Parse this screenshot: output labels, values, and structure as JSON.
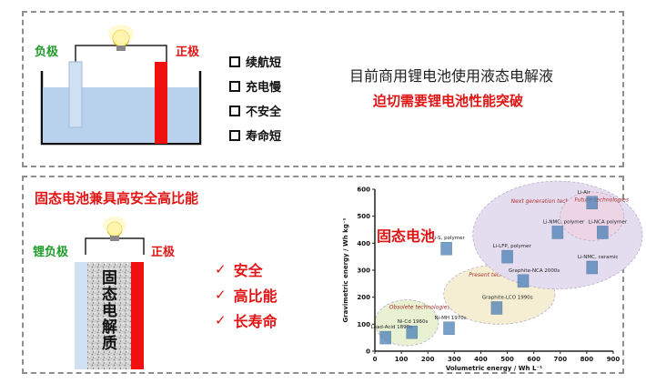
{
  "top_panel": {
    "negative_label": "负极",
    "positive_label": "正极",
    "issues": [
      "续航短",
      "充电慢",
      "不安全",
      "寿命短"
    ],
    "statement": "目前商用锂电池使用液态电解液",
    "conclusion": "迫切需要锂电池性能突破"
  },
  "bottom_panel": {
    "headline": "固态电池兼具高安全高比能",
    "negative_label": "锂负极",
    "positive_label": "正极",
    "electrolyte_label": "固态电解质",
    "benefits": [
      "安全",
      "高比能",
      "长寿命"
    ],
    "benefit_mark": "✓"
  },
  "chart_data": {
    "type": "scatter",
    "title": "",
    "overlay_label": "固态电池",
    "xlabel": "Volumetric energy / Wh L⁻¹",
    "ylabel": "Gravimetric energy / Wh kg⁻¹",
    "xlim": [
      0,
      900
    ],
    "ylim": [
      0,
      600
    ],
    "xticks": [
      0,
      100,
      200,
      300,
      400,
      500,
      600,
      700,
      800,
      900
    ],
    "yticks": [
      0,
      100,
      200,
      300,
      400,
      500,
      600
    ],
    "regions": [
      {
        "name": "Obsolete technologies",
        "cx": 120,
        "cy": 105,
        "rx": 120,
        "ry": 85,
        "color": "#e8f1d2"
      },
      {
        "name": "Present technologies",
        "cx": 470,
        "cy": 210,
        "rx": 210,
        "ry": 110,
        "color": "#f6eed2"
      },
      {
        "name": "Next generation technologies",
        "cx": 690,
        "cy": 430,
        "rx": 320,
        "ry": 200,
        "color": "#e4dcef"
      },
      {
        "name": "Future technologies",
        "cx": 820,
        "cy": 500,
        "rx": 120,
        "ry": 90,
        "color": "#ecd6e6"
      }
    ],
    "points": [
      {
        "label": "Lead-Acid 1890s",
        "x": 40,
        "y": 40
      },
      {
        "label": "Ni-Cd 1960s",
        "x": 140,
        "y": 60
      },
      {
        "label": "Ni-MH 1970s",
        "x": 280,
        "y": 75
      },
      {
        "label": "Graphite-LCO 1990s",
        "x": 460,
        "y": 150
      },
      {
        "label": "Graphite-NCA 2000s",
        "x": 560,
        "y": 250
      },
      {
        "label": "Li-S, polymer",
        "x": 270,
        "y": 370
      },
      {
        "label": "Li-LFP, polymer",
        "x": 500,
        "y": 340
      },
      {
        "label": "Li-NMC, polymer",
        "x": 690,
        "y": 430
      },
      {
        "label": "Li-NMC, ceramic",
        "x": 820,
        "y": 300
      },
      {
        "label": "Li-NCA polymer",
        "x": 860,
        "y": 430
      },
      {
        "label": "Li-Air",
        "x": 820,
        "y": 540
      }
    ],
    "colors": {
      "axis": "#222222",
      "point": "#4a7fb5"
    }
  }
}
